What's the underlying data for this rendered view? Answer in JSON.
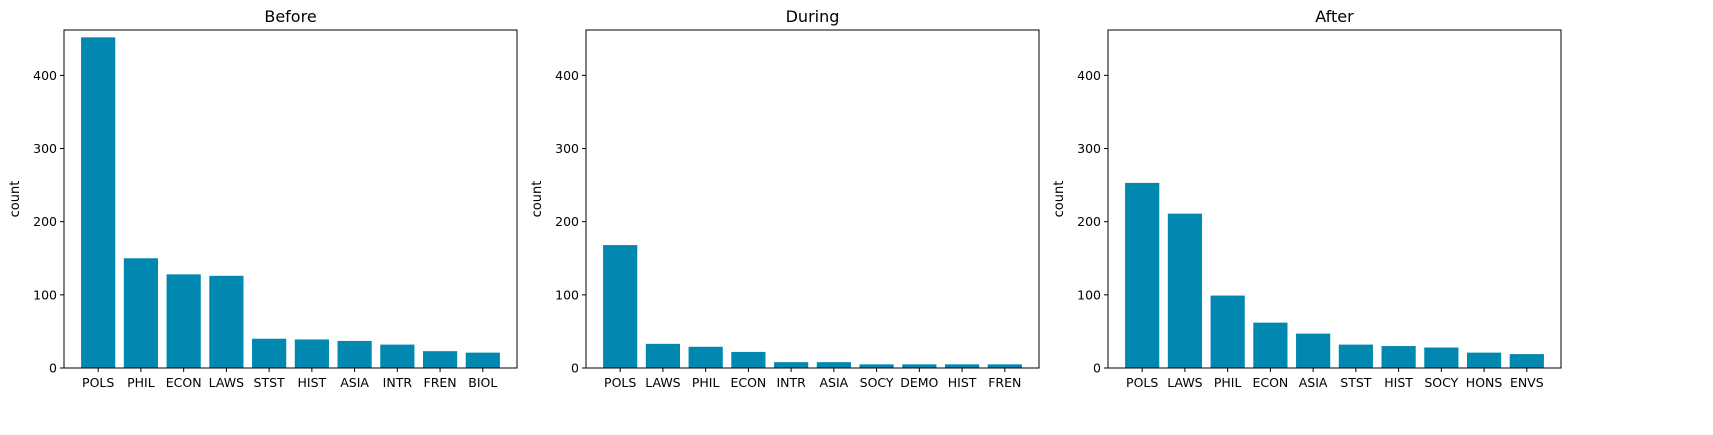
{
  "chart_data": [
    {
      "type": "bar",
      "title": "Before",
      "xlabel": "",
      "ylabel": "count",
      "ylim": [
        0,
        462
      ],
      "yticks": [
        0,
        100,
        200,
        300,
        400
      ],
      "grid": false,
      "color": "#0088b0",
      "categories": [
        "POLS",
        "PHIL",
        "ECON",
        "LAWS",
        "STST",
        "HIST",
        "ASIA",
        "INTR",
        "FREN",
        "BIOL"
      ],
      "values": [
        452,
        150,
        128,
        126,
        40,
        39,
        37,
        32,
        23,
        21
      ]
    },
    {
      "type": "bar",
      "title": "During",
      "xlabel": "",
      "ylabel": "count",
      "ylim": [
        0,
        462
      ],
      "yticks": [
        0,
        100,
        200,
        300,
        400
      ],
      "grid": false,
      "color": "#0088b0",
      "categories": [
        "POLS",
        "LAWS",
        "PHIL",
        "ECON",
        "INTR",
        "ASIA",
        "SOCY",
        "DEMO",
        "HIST",
        "FREN"
      ],
      "values": [
        168,
        33,
        29,
        22,
        8,
        8,
        5,
        5,
        5,
        5
      ]
    },
    {
      "type": "bar",
      "title": "After",
      "xlabel": "",
      "ylabel": "count",
      "ylim": [
        0,
        462
      ],
      "yticks": [
        0,
        100,
        200,
        300,
        400
      ],
      "grid": false,
      "color": "#0088b0",
      "categories": [
        "POLS",
        "LAWS",
        "PHIL",
        "ECON",
        "ASIA",
        "STST",
        "HIST",
        "SOCY",
        "HONS",
        "ENVS"
      ],
      "values": [
        253,
        211,
        99,
        62,
        47,
        32,
        30,
        28,
        21,
        19
      ]
    }
  ]
}
